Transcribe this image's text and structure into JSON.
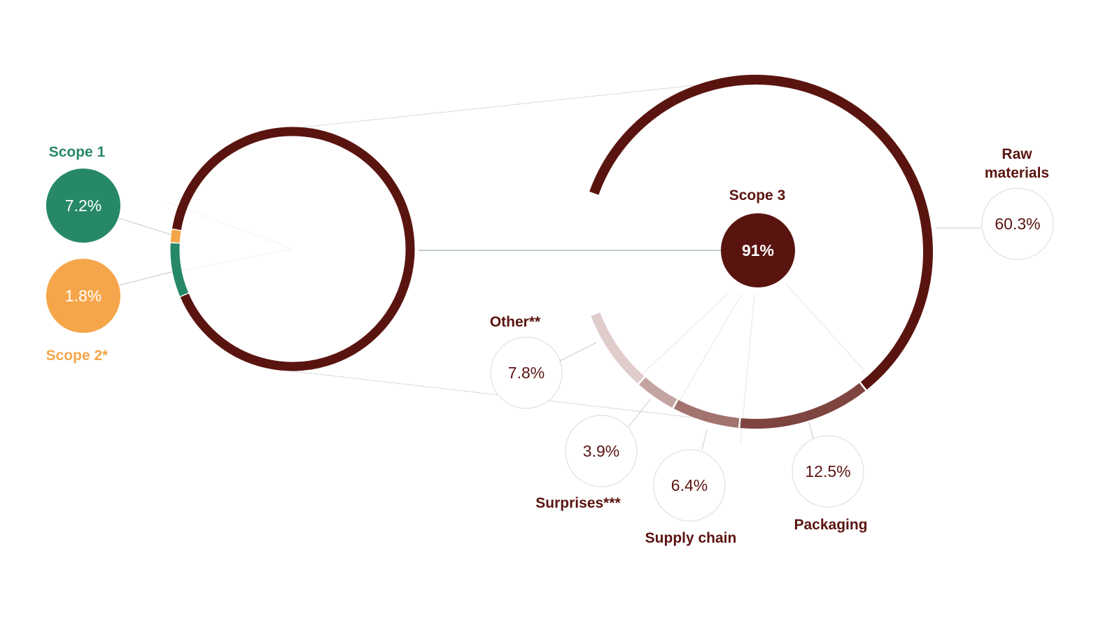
{
  "colors": {
    "scope1": "#268868",
    "scope2": "#f5a64a",
    "scope3": "#5a1410",
    "raw_materials": "#5a1410",
    "packaging": "#7d4440",
    "supply_chain": "#a2736f",
    "surprises": "#c4a4a1",
    "other": "#e0cdcb"
  },
  "chart_data": {
    "type": "pie",
    "title": "",
    "overall": {
      "slices": [
        {
          "key": "scope1",
          "label": "Scope 1",
          "value": 7.2,
          "value_label": "7.2%",
          "color": "#268868"
        },
        {
          "key": "scope2",
          "label": "Scope 2*",
          "value": 1.8,
          "value_label": "1.8%",
          "color": "#f5a64a"
        },
        {
          "key": "scope3",
          "label": "Scope 3",
          "value": 91,
          "value_label": "91%",
          "color": "#5a1410"
        }
      ]
    },
    "scope3_breakdown": {
      "label": "Scope 3",
      "value_label": "91%",
      "slices": [
        {
          "key": "raw_materials",
          "label": "Raw materials",
          "value": 60.3,
          "value_label": "60.3%",
          "color": "#5a1410"
        },
        {
          "key": "packaging",
          "label": "Packaging",
          "value": 12.5,
          "value_label": "12.5%",
          "color": "#7d4440"
        },
        {
          "key": "supply_chain",
          "label": "Supply chain",
          "value": 6.4,
          "value_label": "6.4%",
          "color": "#a2736f"
        },
        {
          "key": "surprises",
          "label": "Surprises***",
          "value": 3.9,
          "value_label": "3.9%",
          "color": "#c4a4a1"
        },
        {
          "key": "other",
          "label": "Other**",
          "value": 7.8,
          "value_label": "7.8%",
          "color": "#e0cdcb"
        }
      ]
    }
  }
}
